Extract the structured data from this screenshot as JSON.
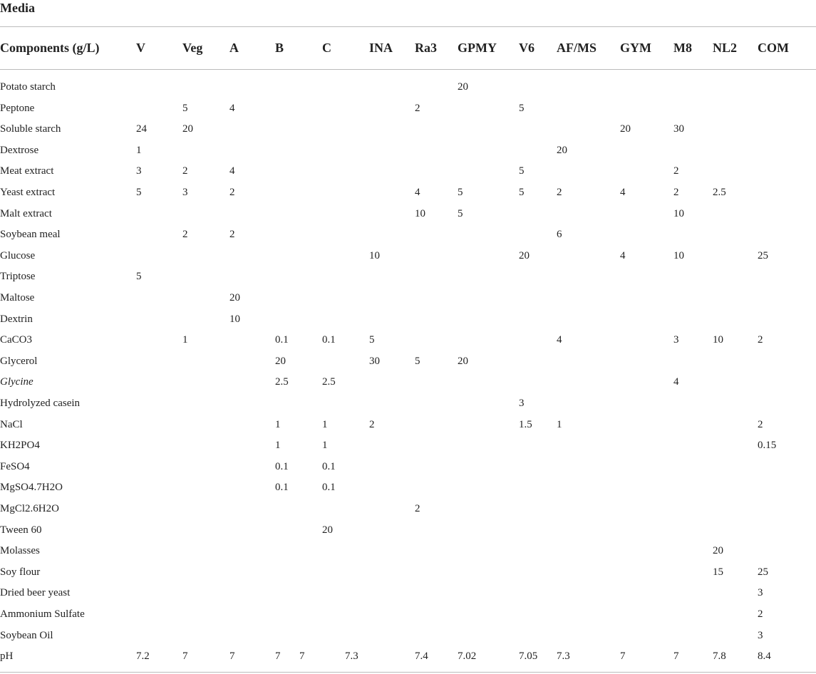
{
  "caption": "Media",
  "headers": [
    "Components (g/L)",
    "V",
    "Veg",
    "A",
    "B",
    "C",
    "INA",
    "Ra3",
    "GPMY",
    "V6",
    "AF/MS",
    "GYM",
    "M8",
    "NL2",
    "COM"
  ],
  "rows": [
    {
      "name": "Potato starch",
      "values": [
        "",
        "",
        "",
        "",
        "",
        "",
        "",
        "20",
        "",
        "",
        "",
        "",
        "",
        ""
      ]
    },
    {
      "name": "Peptone",
      "values": [
        "",
        "5",
        "4",
        "",
        "",
        "",
        "2",
        "",
        "5",
        "",
        "",
        "",
        "",
        ""
      ]
    },
    {
      "name": "Soluble starch",
      "values": [
        "24",
        "20",
        "",
        "",
        "",
        "",
        "",
        "",
        "",
        "",
        "20",
        "30",
        "",
        ""
      ]
    },
    {
      "name": "Dextrose",
      "values": [
        "1",
        "",
        "",
        "",
        "",
        "",
        "",
        "",
        "",
        "20",
        "",
        "",
        "",
        ""
      ]
    },
    {
      "name": "Meat extract",
      "values": [
        "3",
        "2",
        "4",
        "",
        "",
        "",
        "",
        "",
        "5",
        "",
        "",
        "2",
        "",
        ""
      ]
    },
    {
      "name": "Yeast extract",
      "values": [
        "5",
        "3",
        "2",
        "",
        "",
        "",
        "4",
        "5",
        "5",
        "2",
        "4",
        "2",
        "2.5",
        ""
      ]
    },
    {
      "name": "Malt extract",
      "values": [
        "",
        "",
        "",
        "",
        "",
        "",
        "10",
        "5",
        "",
        "",
        "",
        "10",
        "",
        ""
      ]
    },
    {
      "name": "Soybean meal",
      "values": [
        "",
        "2",
        "2",
        "",
        "",
        "",
        "",
        "",
        "",
        "6",
        "",
        "",
        "",
        ""
      ]
    },
    {
      "name": "Glucose",
      "values": [
        "",
        "",
        "",
        "",
        "",
        "10",
        "",
        "",
        "20",
        "",
        "4",
        "10",
        "",
        "25"
      ]
    },
    {
      "name": "Triptose",
      "values": [
        "5",
        "",
        "",
        "",
        "",
        "",
        "",
        "",
        "",
        "",
        "",
        "",
        "",
        ""
      ]
    },
    {
      "name": "Maltose",
      "values": [
        "",
        "",
        "20",
        "",
        "",
        "",
        "",
        "",
        "",
        "",
        "",
        "",
        "",
        ""
      ]
    },
    {
      "name": "Dextrin",
      "values": [
        "",
        "",
        "10",
        "",
        "",
        "",
        "",
        "",
        "",
        "",
        "",
        "",
        "",
        ""
      ]
    },
    {
      "name": "CaCO3",
      "values": [
        "",
        "1",
        "",
        "0.1",
        "0.1",
        "5",
        "",
        "",
        "",
        "4",
        "",
        "3",
        "10",
        "2"
      ]
    },
    {
      "name": "Glycerol",
      "values": [
        "",
        "",
        "",
        "20",
        "",
        "30",
        "5",
        "20",
        "",
        "",
        "",
        "",
        "",
        ""
      ]
    },
    {
      "name": "Glycine",
      "italic": true,
      "values": [
        "",
        "",
        "",
        "2.5",
        "2.5",
        "",
        "",
        "",
        "",
        "",
        "",
        "4",
        "",
        ""
      ]
    },
    {
      "name": "Hydrolyzed casein",
      "values": [
        "",
        "",
        "",
        "",
        "",
        "",
        "",
        "",
        "3",
        "",
        "",
        "",
        "",
        ""
      ]
    },
    {
      "name": "NaCl",
      "values": [
        "",
        "",
        "",
        "1",
        "1",
        "2",
        "",
        "",
        "1.5",
        "1",
        "",
        "",
        "",
        "2"
      ]
    },
    {
      "name": "KH2PO4",
      "values": [
        "",
        "",
        "",
        "1",
        "1",
        "",
        "",
        "",
        "",
        "",
        "",
        "",
        "",
        "0.15"
      ]
    },
    {
      "name": "FeSO4",
      "values": [
        "",
        "",
        "",
        "0.1",
        "0.1",
        "",
        "",
        "",
        "",
        "",
        "",
        "",
        "",
        ""
      ]
    },
    {
      "name": "MgSO4.7H2O",
      "values": [
        "",
        "",
        "",
        "0.1",
        "0.1",
        "",
        "",
        "",
        "",
        "",
        "",
        "",
        "",
        ""
      ]
    },
    {
      "name": "MgCl2.6H2O",
      "values": [
        "",
        "",
        "",
        "",
        "",
        "",
        "2",
        "",
        "",
        "",
        "",
        "",
        "",
        ""
      ]
    },
    {
      "name": "Tween 60",
      "values": [
        "",
        "",
        "",
        "",
        "20",
        "",
        "",
        "",
        "",
        "",
        "",
        "",
        "",
        ""
      ]
    },
    {
      "name": "Molasses",
      "values": [
        "",
        "",
        "",
        "",
        "",
        "",
        "",
        "",
        "",
        "",
        "",
        "",
        "20",
        ""
      ]
    },
    {
      "name": "Soy flour",
      "values": [
        "",
        "",
        "",
        "",
        "",
        "",
        "",
        "",
        "",
        "",
        "",
        "",
        "15",
        "25"
      ]
    },
    {
      "name": "Dried beer yeast",
      "values": [
        "",
        "",
        "",
        "",
        "",
        "",
        "",
        "",
        "",
        "",
        "",
        "",
        "",
        "3"
      ]
    },
    {
      "name": "Ammonium Sulfate",
      "values": [
        "",
        "",
        "",
        "",
        "",
        "",
        "",
        "",
        "",
        "",
        "",
        "",
        "",
        "2"
      ]
    },
    {
      "name": "Soybean Oil",
      "values": [
        "",
        "",
        "",
        "",
        "",
        "",
        "",
        "",
        "",
        "",
        "",
        "",
        "",
        "3"
      ]
    }
  ],
  "ph_row": {
    "name": "pH",
    "values": [
      "7.2",
      "7",
      "7",
      "7",
      "7",
      "7.3",
      "7.4",
      "7.02",
      "7.05",
      "7.3",
      "7",
      "7",
      "7.8",
      "8.4"
    ]
  }
}
